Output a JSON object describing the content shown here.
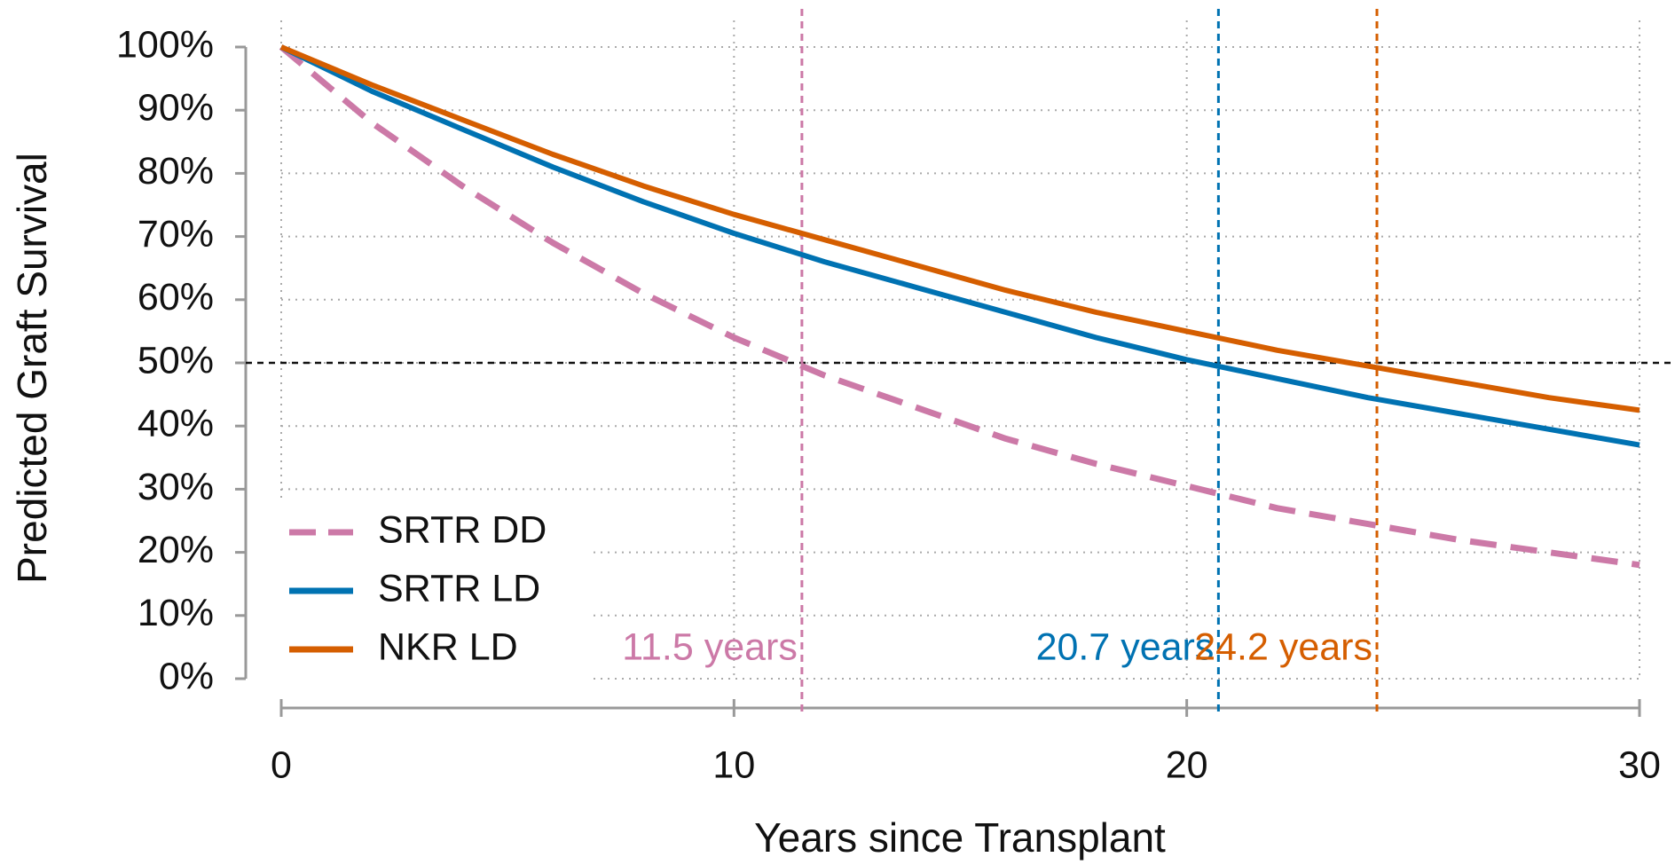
{
  "chart_data": {
    "type": "line",
    "x_label": "Years since Transplant",
    "y_label": "Predicted Graft Survival",
    "x": [
      0,
      2,
      4,
      6,
      8,
      10,
      12,
      14,
      16,
      18,
      20,
      22,
      24,
      26,
      28,
      30
    ],
    "series": [
      {
        "name": "SRTR DD",
        "color": "#cc79a7",
        "line_style": "dashed",
        "values": [
          100,
          88,
          78,
          69,
          61,
          54,
          48,
          43,
          38,
          34,
          30.5,
          27,
          24.5,
          22,
          20,
          18
        ]
      },
      {
        "name": "SRTR LD",
        "color": "#0072b2",
        "line_style": "solid",
        "values": [
          100,
          93,
          87,
          81,
          75.5,
          70.5,
          66,
          62,
          58,
          54,
          50.5,
          47.5,
          44.5,
          42,
          39.5,
          37
        ]
      },
      {
        "name": "NKR LD",
        "color": "#d55e00",
        "line_style": "solid",
        "values": [
          100,
          94,
          88.5,
          83,
          78,
          73.5,
          69.5,
          65.5,
          61.5,
          58,
          55,
          52,
          49.5,
          47,
          44.5,
          42.5
        ]
      }
    ],
    "xlim": [
      0,
      30
    ],
    "xticks": [
      0,
      10,
      20,
      30
    ],
    "ylim": [
      0,
      100
    ],
    "yticks": [
      {
        "value": 0,
        "label": "0%"
      },
      {
        "value": 10,
        "label": "10%"
      },
      {
        "value": 20,
        "label": "20%"
      },
      {
        "value": 30,
        "label": "30%"
      },
      {
        "value": 40,
        "label": "40%"
      },
      {
        "value": 50,
        "label": "50%"
      },
      {
        "value": 60,
        "label": "60%"
      },
      {
        "value": 70,
        "label": "70%"
      },
      {
        "value": 80,
        "label": "80%"
      },
      {
        "value": 90,
        "label": "90%"
      },
      {
        "value": 100,
        "label": "100%"
      }
    ],
    "grid": true,
    "legend": "lower left",
    "reference_line_y": 50,
    "annotations": [
      {
        "x": 11.5,
        "label": "11.5 years",
        "color": "#cc79a7"
      },
      {
        "x": 20.7,
        "label": "20.7 years",
        "color": "#0072b2"
      },
      {
        "x": 24.2,
        "label": "24.2 years",
        "color": "#d55e00"
      }
    ]
  }
}
